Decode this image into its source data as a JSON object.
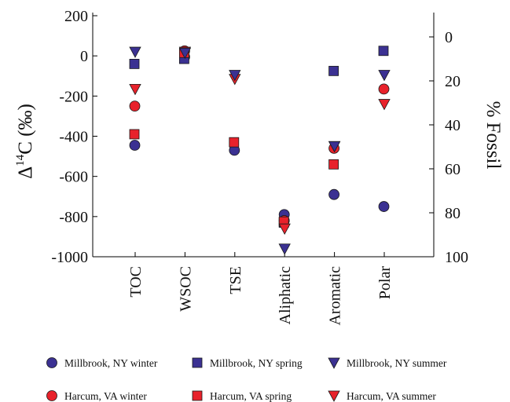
{
  "chart_data": {
    "type": "scatter",
    "categories": [
      "TOC",
      "WSOC",
      "TSE",
      "Aliphatic",
      "Aromatic",
      "Polar"
    ],
    "ylabel_prefix": "Δ",
    "ylabel_sup": "14",
    "ylabel_suffix": "C (‰)",
    "y2label": "% Fossil",
    "ylim": [
      -1000,
      200
    ],
    "yticks": [
      "200",
      "0",
      "-200",
      "-400",
      "-600",
      "-800",
      "-1000"
    ],
    "y2lim": [
      0,
      100
    ],
    "y2ticks": [
      "0",
      "20",
      "40",
      "60",
      "80",
      "100"
    ],
    "grid": false,
    "legend_position": "bottom",
    "series": [
      {
        "name": "Millbrook, NY winter",
        "marker": "circle",
        "color": "#3b3192",
        "values": [
          -445,
          -5,
          -470,
          -790,
          -690,
          -750
        ]
      },
      {
        "name": "Millbrook, NY spring",
        "marker": "square",
        "color": "#3b3192",
        "values": [
          -40,
          -15,
          null,
          -830,
          -75,
          25
        ]
      },
      {
        "name": "Millbrook, NY summer",
        "marker": "triangle-down",
        "color": "#3b3192",
        "values": [
          20,
          15,
          -95,
          -960,
          -450,
          -95
        ]
      },
      {
        "name": "Harcum, VA winter",
        "marker": "circle",
        "color": "#e8222b",
        "values": [
          -250,
          25,
          null,
          -820,
          -460,
          -165
        ]
      },
      {
        "name": "Harcum, VA spring",
        "marker": "square",
        "color": "#e8222b",
        "values": [
          -390,
          15,
          -430,
          -825,
          -540,
          null
        ]
      },
      {
        "name": "Harcum, VA summer",
        "marker": "triangle-down",
        "color": "#e8222b",
        "values": [
          -165,
          20,
          -115,
          -860,
          -450,
          -240
        ]
      }
    ]
  }
}
